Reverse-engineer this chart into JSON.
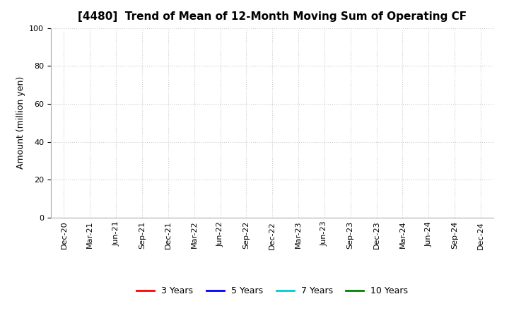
{
  "title": "[4480]  Trend of Mean of 12-Month Moving Sum of Operating CF",
  "ylabel": "Amount (million yen)",
  "ylim": [
    0,
    100
  ],
  "yticks": [
    0,
    20,
    40,
    60,
    80,
    100
  ],
  "background_color": "#ffffff",
  "grid_color": "#cccccc",
  "x_labels": [
    "Dec-20",
    "Mar-21",
    "Jun-21",
    "Sep-21",
    "Dec-21",
    "Mar-22",
    "Jun-22",
    "Sep-22",
    "Dec-22",
    "Mar-23",
    "Jun-23",
    "Sep-23",
    "Dec-23",
    "Mar-24",
    "Jun-24",
    "Sep-24",
    "Dec-24"
  ],
  "legend": [
    {
      "label": "3 Years",
      "color": "#ff0000"
    },
    {
      "label": "5 Years",
      "color": "#0000ff"
    },
    {
      "label": "7 Years",
      "color": "#00cccc"
    },
    {
      "label": "10 Years",
      "color": "#008000"
    }
  ],
  "title_fontsize": 11,
  "axis_label_fontsize": 9,
  "tick_fontsize": 8,
  "legend_fontsize": 9
}
